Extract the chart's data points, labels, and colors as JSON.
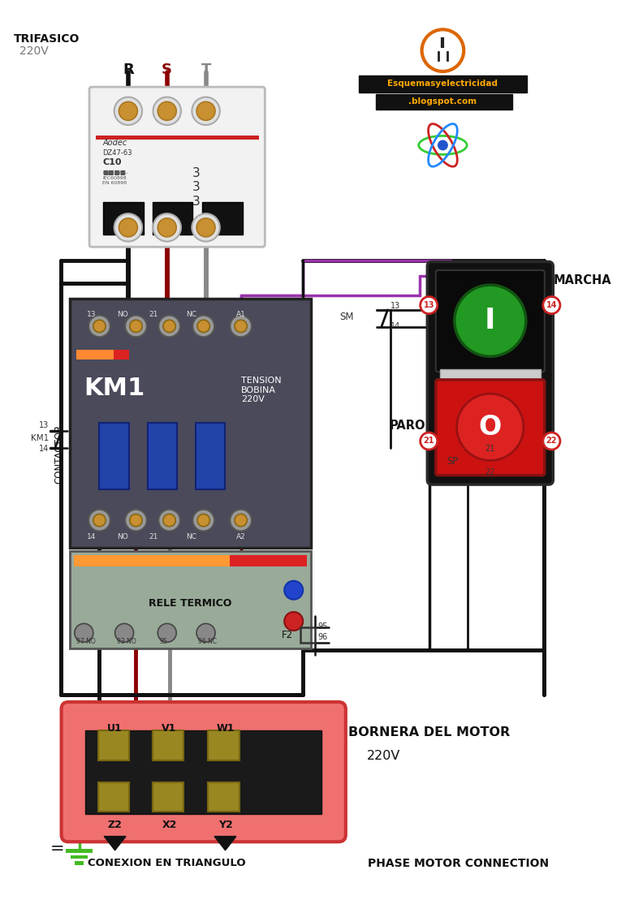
{
  "bg_color": "#ffffff",
  "phase_labels": [
    "R",
    "S",
    "T"
  ],
  "phase_colors_wire": [
    "#111111",
    "#8b0000",
    "#888888"
  ],
  "trifasico_text": "TRIFASICO",
  "trifasico_v": "220V",
  "km1_text": "KM1",
  "tension_text": "TENSION\nBOBINA\n220V",
  "contactor_text": "CONTACTOR",
  "marcha_label": "MARCHA",
  "paro_label": "PARO",
  "bornera_text": "BORNERA DEL MOTOR",
  "bornera_v": "220V",
  "conexion_text": "CONEXION EN TRIANGULO",
  "phase_motor_text": "PHASE MOTOR CONNECTION",
  "rele_text": "RELE TERMICO",
  "sm_label": "SM",
  "sp_label": "SP",
  "f2_label": "F2",
  "km1_aux": "KM1",
  "esquemas_line1": "Esquemasyelectricidad",
  "esquemas_line2": ".blogspot.com",
  "top_labels": [
    "13",
    "NO",
    "21",
    "NC",
    "A1"
  ],
  "bot_labels": [
    "14",
    "NO",
    "21",
    "NC",
    "A2"
  ]
}
